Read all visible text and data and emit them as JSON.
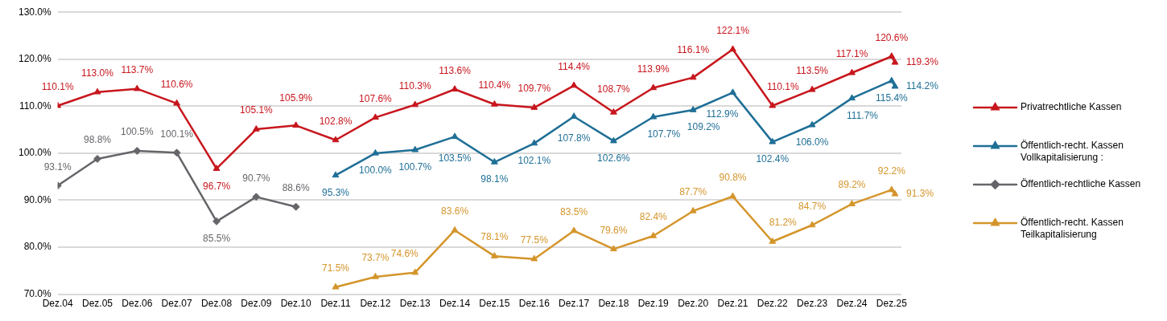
{
  "chart_data": {
    "type": "line",
    "x": [
      "2004-12",
      "2005-12",
      "2006-12",
      "2007-12",
      "2008-12",
      "2009-12",
      "2010-12",
      "2011-12",
      "2012-12",
      "2013-12",
      "2014-12",
      "2015-12",
      "2016-12",
      "2017-12",
      "2018-12",
      "2019-12",
      "2020-12",
      "2021-12",
      "2022-12",
      "2023-12",
      "2024-12",
      "2025-12",
      "2026-01"
    ],
    "xlim": [
      "2004-12",
      "2026-03"
    ],
    "xticks": [
      {
        "value": "2004-12",
        "label": "Dez.04"
      },
      {
        "value": "2005-12",
        "label": "Dez.05"
      },
      {
        "value": "2006-12",
        "label": "Dez.06"
      },
      {
        "value": "2007-12",
        "label": "Dez.07"
      },
      {
        "value": "2008-12",
        "label": "Dez.08"
      },
      {
        "value": "2009-12",
        "label": "Dez.09"
      },
      {
        "value": "2010-12",
        "label": "Dez.10"
      },
      {
        "value": "2011-12",
        "label": "Dez.11"
      },
      {
        "value": "2012-12",
        "label": "Dez.12"
      },
      {
        "value": "2013-12",
        "label": "Dez.13"
      },
      {
        "value": "2014-12",
        "label": "Dez.14"
      },
      {
        "value": "2015-12",
        "label": "Dez.15"
      },
      {
        "value": "2016-12",
        "label": "Dez.16"
      },
      {
        "value": "2017-12",
        "label": "Dez.17"
      },
      {
        "value": "2018-12",
        "label": "Dez.18"
      },
      {
        "value": "2019-12",
        "label": "Dez.19"
      },
      {
        "value": "2020-12",
        "label": "Dez.20"
      },
      {
        "value": "2021-12",
        "label": "Dez.21"
      },
      {
        "value": "2022-12",
        "label": "Dez.22"
      },
      {
        "value": "2023-12",
        "label": "Dez.23"
      },
      {
        "value": "2024-12",
        "label": "Dez.24"
      },
      {
        "value": "2025-12",
        "label": "Dez.25"
      }
    ],
    "ylim": [
      70,
      130
    ],
    "yticks": [
      {
        "value": 70,
        "label": "70.0%"
      },
      {
        "value": 80,
        "label": "80.0%"
      },
      {
        "value": 90,
        "label": "90.0%"
      },
      {
        "value": 100,
        "label": "100.0%"
      },
      {
        "value": 110,
        "label": "110.0%"
      },
      {
        "value": 120,
        "label": "120.0%"
      },
      {
        "value": 130,
        "label": "130.0%"
      }
    ],
    "grid": "y",
    "legend": "right",
    "series": [
      {
        "name": "Privatrechtliche Kassen",
        "color": "#c8161d",
        "marker": "triangle",
        "values": [
          110.1,
          113.0,
          113.7,
          110.6,
          96.7,
          105.1,
          105.9,
          102.8,
          107.6,
          110.3,
          113.6,
          110.4,
          109.7,
          114.4,
          108.7,
          113.9,
          116.1,
          122.1,
          110.1,
          113.5,
          117.1,
          120.6,
          119.3
        ],
        "value_labels": [
          "110.1%",
          "113.0%",
          "113.7%",
          "110.6%",
          "96.7%",
          "105.1%",
          "105.9%",
          "102.8%",
          "107.6%",
          "110.3%",
          "113.6%",
          "110.4%",
          "109.7%",
          "114.4%",
          "108.7%",
          "113.9%",
          "116.1%",
          "122.1%",
          "110.1%",
          "113.5%",
          "117.1%",
          "120.6%",
          "119.3%"
        ]
      },
      {
        "name": "Öffentlich-recht. Kassen Vollkapitalisierung :",
        "color": "#1f6f96",
        "marker": "triangle",
        "values": [
          null,
          null,
          null,
          null,
          null,
          null,
          null,
          95.3,
          100.0,
          100.7,
          103.5,
          98.1,
          102.1,
          107.8,
          102.6,
          107.7,
          109.2,
          112.9,
          102.4,
          106.0,
          111.7,
          115.4,
          114.2
        ],
        "value_labels": [
          null,
          null,
          null,
          null,
          null,
          null,
          null,
          "95.3%",
          "100.0%",
          "100.7%",
          "103.5%",
          "98.1%",
          "102.1%",
          "107.8%",
          "102.6%",
          "107.7%",
          "109.2%",
          "112.9%",
          "102.4%",
          "106.0%",
          "111.7%",
          "115.4%",
          "114.2%"
        ]
      },
      {
        "name": "Öffentlich-rechtliche Kassen",
        "color": "#65666a",
        "marker": "diamond",
        "values": [
          93.1,
          98.8,
          100.5,
          100.1,
          85.5,
          90.7,
          88.6,
          null,
          null,
          null,
          null,
          null,
          null,
          null,
          null,
          null,
          null,
          null,
          null,
          null,
          null,
          null,
          null
        ],
        "value_labels": [
          "93.1%",
          "98.8%",
          "100.5%",
          "100.1%",
          "85.5%",
          "90.7%",
          "88.6%",
          null,
          null,
          null,
          null,
          null,
          null,
          null,
          null,
          null,
          null,
          null,
          null,
          null,
          null,
          null,
          null
        ]
      },
      {
        "name": "Öffentlich-recht. Kassen Teilkapitalisierung",
        "color": "#d4952b",
        "marker": "triangle",
        "values": [
          null,
          null,
          null,
          null,
          null,
          null,
          null,
          71.5,
          73.7,
          74.6,
          83.6,
          78.1,
          77.5,
          83.5,
          79.6,
          82.4,
          87.7,
          90.8,
          81.2,
          84.7,
          89.2,
          92.2,
          91.3
        ],
        "value_labels": [
          null,
          null,
          null,
          null,
          null,
          null,
          null,
          "71.5%",
          "73.7%",
          "74.6%",
          "83.6%",
          "78.1%",
          "77.5%",
          "83.5%",
          "79.6%",
          "82.4%",
          "87.7%",
          "90.8%",
          "81.2%",
          "84.7%",
          "89.2%",
          "92.2%",
          "91.3%"
        ]
      }
    ]
  }
}
